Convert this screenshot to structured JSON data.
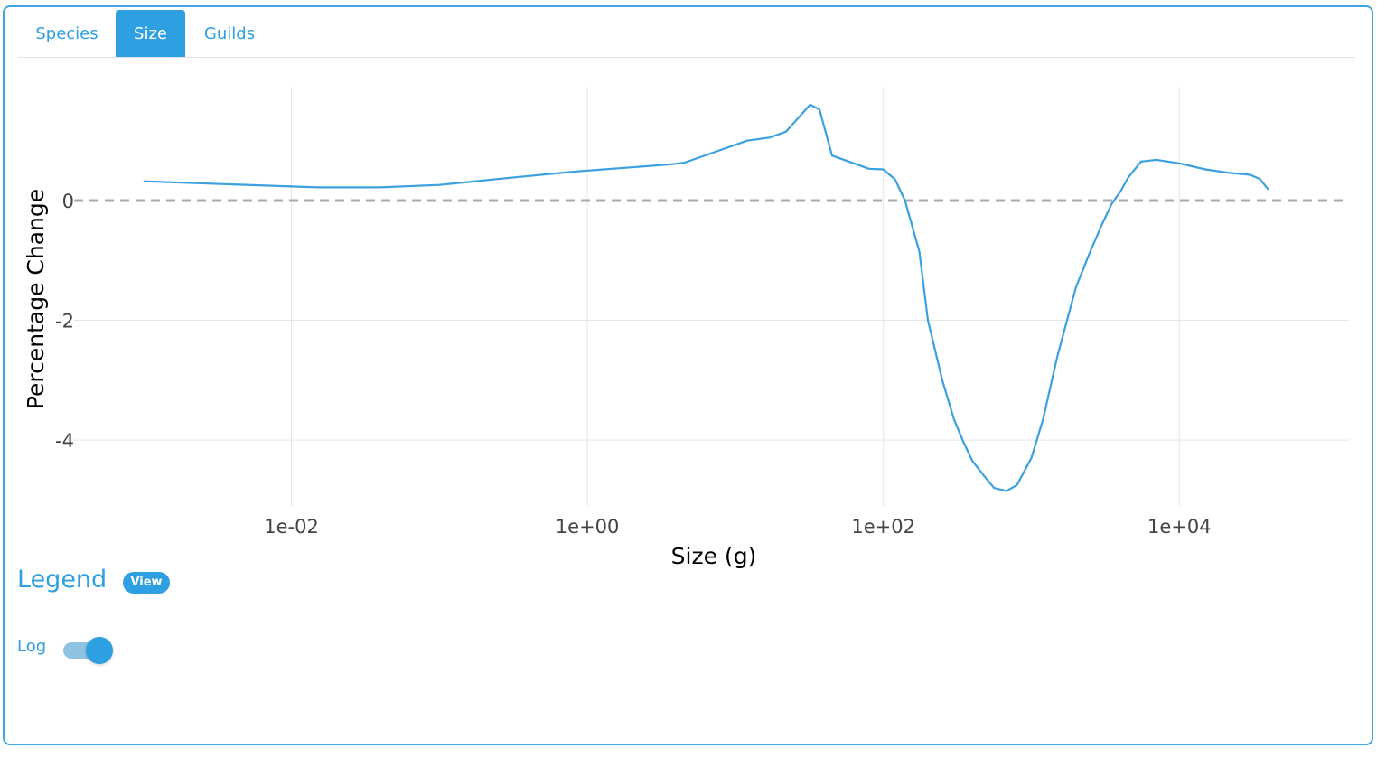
{
  "tabs": [
    {
      "label": "Species",
      "active": false
    },
    {
      "label": "Size",
      "active": true
    },
    {
      "label": "Guilds",
      "active": false
    }
  ],
  "legend": {
    "title": "Legend",
    "view_badge": "View"
  },
  "log_toggle": {
    "label": "Log",
    "checked": true
  },
  "colors": {
    "accent": "#2e9fe0",
    "line": "#3aa0df",
    "zero_line": "#a9a9a9",
    "grid": "#e6e6e6"
  },
  "chart_data": {
    "type": "line",
    "xlabel": "Size (g)",
    "ylabel": "Percentage Change",
    "x_scale": "log10",
    "x_ticks": [
      {
        "value": 0.01,
        "label": "1e-02"
      },
      {
        "value": 1,
        "label": "1e+00"
      },
      {
        "value": 100,
        "label": "1e+02"
      },
      {
        "value": 10000,
        "label": "1e+04"
      }
    ],
    "y_ticks": [
      {
        "value": 0,
        "label": "0"
      },
      {
        "value": -2,
        "label": "-2"
      },
      {
        "value": -4,
        "label": "-4"
      }
    ],
    "xlim": [
      0.00034,
      140000
    ],
    "ylim": [
      -5.1,
      1.9
    ],
    "reference_line": {
      "y": 0,
      "style": "dashed"
    },
    "grid": true,
    "series": [
      {
        "x": [
          0.001,
          0.015,
          0.04,
          0.1,
          0.3,
          0.8,
          3.5,
          4.5,
          12,
          17,
          22,
          32,
          37,
          45,
          80,
          100,
          120,
          140,
          175,
          200,
          250,
          300,
          350,
          400,
          480,
          560,
          680,
          800,
          1000,
          1200,
          1500,
          2000,
          2500,
          3000,
          3500,
          4000,
          4500,
          5500,
          7000,
          10000,
          15000,
          22000,
          30000,
          35000,
          40000
        ],
        "y": [
          0.32,
          0.22,
          0.22,
          0.26,
          0.38,
          0.48,
          0.6,
          0.63,
          1.0,
          1.05,
          1.15,
          1.6,
          1.52,
          0.75,
          0.53,
          0.52,
          0.35,
          0.0,
          -0.85,
          -2.0,
          -3.0,
          -3.65,
          -4.05,
          -4.35,
          -4.6,
          -4.8,
          -4.85,
          -4.75,
          -4.3,
          -3.65,
          -2.6,
          -1.45,
          -0.85,
          -0.4,
          -0.05,
          0.15,
          0.38,
          0.65,
          0.68,
          0.62,
          0.52,
          0.46,
          0.43,
          0.36,
          0.18
        ]
      }
    ]
  }
}
